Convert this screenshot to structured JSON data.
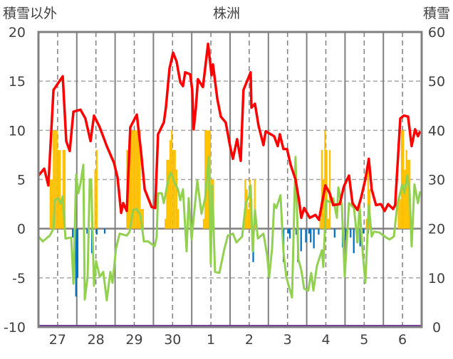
{
  "chart_data": {
    "type": "line",
    "title": "株洲",
    "ylabel_left": "積雪以外",
    "ylabel_right": "積雪",
    "x_unit": "hours since day 27 00:00",
    "xlim": [
      0,
      240
    ],
    "ylim_left": [
      -10,
      20
    ],
    "ylim_right": [
      0,
      60
    ],
    "yticks_left": [
      "20",
      "15",
      "10",
      "5",
      "0",
      "-5",
      "-10"
    ],
    "yticks_right": [
      "60",
      "50",
      "40",
      "30",
      "20",
      "10",
      "0"
    ],
    "xtick_labels": [
      "27",
      "28",
      "29",
      "30",
      "1",
      "2",
      "3",
      "4",
      "5",
      "6"
    ],
    "grid": true,
    "colors": {
      "red": "#ff0000",
      "green": "#92d050",
      "orange": "#ffc000",
      "blue": "#0070c0",
      "purple": "#7030a0"
    },
    "series": [
      {
        "name": "red-line",
        "axis": "left",
        "kind": "line",
        "points": [
          [
            0,
            5.4
          ],
          [
            3.6,
            6.1
          ],
          [
            6.2,
            4.4
          ],
          [
            9.4,
            14.1
          ],
          [
            15.2,
            15.5
          ],
          [
            17.4,
            8.9
          ],
          [
            19.6,
            7.9
          ],
          [
            21.9,
            11.9
          ],
          [
            26.3,
            12.1
          ],
          [
            29.4,
            11.2
          ],
          [
            32.6,
            8.9
          ],
          [
            34.8,
            11.5
          ],
          [
            38.4,
            10.3
          ],
          [
            42.8,
            8.4
          ],
          [
            47.3,
            6.7
          ],
          [
            49.5,
            5.2
          ],
          [
            51.8,
            1.6
          ],
          [
            53.1,
            2.6
          ],
          [
            55.3,
            1.8
          ],
          [
            57.5,
            10.3
          ],
          [
            61.6,
            11.6
          ],
          [
            64.2,
            7.9
          ],
          [
            66.5,
            4.0
          ],
          [
            70.9,
            2.2
          ],
          [
            73.1,
            2.1
          ],
          [
            74.9,
            9.6
          ],
          [
            78.5,
            10.8
          ],
          [
            79.8,
            12.3
          ],
          [
            82.1,
            16.3
          ],
          [
            84.3,
            17.9
          ],
          [
            86.5,
            17.0
          ],
          [
            88.8,
            14.9
          ],
          [
            90.5,
            14.5
          ],
          [
            91.9,
            15.9
          ],
          [
            95.0,
            15.7
          ],
          [
            96.3,
            14.1
          ],
          [
            97.2,
            10.1
          ],
          [
            98.6,
            12.3
          ],
          [
            99.9,
            15.2
          ],
          [
            103.0,
            14.4
          ],
          [
            106.2,
            18.8
          ],
          [
            108.4,
            15.6
          ],
          [
            109.3,
            16.7
          ],
          [
            112.0,
            13.2
          ],
          [
            114.2,
            11.4
          ],
          [
            117.3,
            10.8
          ],
          [
            120.0,
            8.4
          ],
          [
            121.8,
            7.1
          ],
          [
            124.4,
            9.1
          ],
          [
            126.7,
            6.9
          ],
          [
            128.4,
            14.1
          ],
          [
            132.9,
            15.9
          ],
          [
            133.4,
            12.3
          ],
          [
            135.6,
            12.7
          ],
          [
            137.8,
            10.5
          ],
          [
            140.9,
            8.5
          ],
          [
            142.3,
            9.9
          ],
          [
            147.6,
            9.4
          ],
          [
            149.9,
            8.4
          ],
          [
            151.2,
            9.6
          ],
          [
            153.4,
            8.1
          ],
          [
            155.7,
            8.1
          ],
          [
            157.9,
            6.5
          ],
          [
            161.0,
            5.0
          ],
          [
            163.2,
            2.9
          ],
          [
            164.6,
            1.1
          ],
          [
            166.4,
            2.1
          ],
          [
            169.9,
            1.1
          ],
          [
            173.5,
            1.4
          ],
          [
            175.7,
            0.9
          ],
          [
            177.5,
            2.5
          ],
          [
            179.7,
            4.4
          ],
          [
            182.4,
            3.6
          ],
          [
            184.6,
            2.4
          ],
          [
            188.7,
            2.5
          ],
          [
            191.3,
            4.3
          ],
          [
            194.5,
            5.4
          ],
          [
            196.7,
            2.6
          ],
          [
            199.8,
            1.9
          ],
          [
            202.0,
            3.1
          ],
          [
            204.7,
            5.0
          ],
          [
            206.9,
            7.1
          ],
          [
            208.7,
            4.0
          ],
          [
            211.4,
            2.4
          ],
          [
            214.5,
            2.5
          ],
          [
            216.8,
            1.8
          ],
          [
            219.0,
            2.5
          ],
          [
            222.1,
            2.0
          ],
          [
            223.4,
            2.4
          ],
          [
            226.6,
            11.2
          ],
          [
            228.8,
            11.5
          ],
          [
            231.5,
            11.4
          ],
          [
            233.7,
            8.4
          ],
          [
            235.9,
            10.1
          ],
          [
            237.7,
            9.4
          ],
          [
            239,
            9.9
          ]
        ]
      },
      {
        "name": "green-line",
        "axis": "left",
        "kind": "line",
        "points": [
          [
            0,
            -0.8
          ],
          [
            2.7,
            -1.3
          ],
          [
            7.1,
            -0.7
          ],
          [
            9.4,
            0
          ],
          [
            10.3,
            2.9
          ],
          [
            12.5,
            3.1
          ],
          [
            13.8,
            2.5
          ],
          [
            15.2,
            3.3
          ],
          [
            16.9,
            -1.0
          ],
          [
            20.5,
            -0.9
          ],
          [
            21.9,
            -5.6
          ],
          [
            23.6,
            5.5
          ],
          [
            25.0,
            3.6
          ],
          [
            26.3,
            4.6
          ],
          [
            28.1,
            6.5
          ],
          [
            29.0,
            -7.2
          ],
          [
            30.8,
            -4.9
          ],
          [
            32.1,
            5.0
          ],
          [
            33.0,
            5.0
          ],
          [
            34.8,
            -5.8
          ],
          [
            36.1,
            -3.3
          ],
          [
            38.4,
            -4.9
          ],
          [
            40.6,
            -4.4
          ],
          [
            42.8,
            -7.3
          ],
          [
            45.0,
            -4.4
          ],
          [
            46.4,
            -5.5
          ],
          [
            48.6,
            -2.0
          ],
          [
            50.8,
            -0.5
          ],
          [
            55.3,
            -0.7
          ],
          [
            57.1,
            -0.3
          ],
          [
            59.3,
            1.9
          ],
          [
            61.6,
            2.0
          ],
          [
            63.8,
            1.4
          ],
          [
            66.0,
            -1.3
          ],
          [
            68.7,
            -1.3
          ],
          [
            72.7,
            -1.8
          ],
          [
            74.0,
            -0.9
          ],
          [
            74.9,
            3.6
          ],
          [
            77.2,
            3.6
          ],
          [
            78.5,
            2.6
          ],
          [
            81.6,
            5.2
          ],
          [
            83.0,
            5.7
          ],
          [
            85.2,
            4.7
          ],
          [
            87.4,
            4.0
          ],
          [
            88.8,
            2.9
          ],
          [
            90.5,
            4.0
          ],
          [
            92.8,
            -2.3
          ],
          [
            94.1,
            3.1
          ],
          [
            95.9,
            -1.1
          ],
          [
            99.5,
            4.9
          ],
          [
            102.1,
            1.5
          ],
          [
            104.4,
            3.1
          ],
          [
            106.6,
            7.3
          ],
          [
            107.9,
            -3.6
          ],
          [
            108.8,
            4.4
          ],
          [
            110.6,
            -4.4
          ],
          [
            113.3,
            -4.5
          ],
          [
            116.4,
            -2.1
          ],
          [
            118.6,
            -0.7
          ],
          [
            121.8,
            -0.5
          ],
          [
            124.0,
            -1.4
          ],
          [
            127.6,
            -0.8
          ],
          [
            129.8,
            2.6
          ],
          [
            132.0,
            3.3
          ],
          [
            132.9,
            4.4
          ],
          [
            134.2,
            -2.3
          ],
          [
            135.6,
            1.9
          ],
          [
            137.4,
            -1.0
          ],
          [
            140.9,
            -0.5
          ],
          [
            143.2,
            -2.7
          ],
          [
            144.5,
            -4.9
          ],
          [
            146.3,
            -2.0
          ],
          [
            147.6,
            2.5
          ],
          [
            149.0,
            2.1
          ],
          [
            151.6,
            3.4
          ],
          [
            153.4,
            -2.3
          ],
          [
            155.2,
            -4.9
          ],
          [
            158.8,
            -7.0
          ],
          [
            161.0,
            7.3
          ],
          [
            162.8,
            -3.1
          ],
          [
            164.6,
            -4.2
          ],
          [
            166.4,
            -6.1
          ],
          [
            169.0,
            -6.3
          ],
          [
            170.8,
            -4.5
          ],
          [
            172.2,
            -6.3
          ],
          [
            174.4,
            -3.8
          ],
          [
            177.5,
            -2.2
          ],
          [
            178.4,
            -3.9
          ],
          [
            180.2,
            2.9
          ],
          [
            182.4,
            2.7
          ],
          [
            184.6,
            3.1
          ],
          [
            186.9,
            1.1
          ],
          [
            187.8,
            4.2
          ],
          [
            190.0,
            2.4
          ],
          [
            191.8,
            -4.9
          ],
          [
            194.5,
            2.6
          ],
          [
            197.6,
            2.1
          ],
          [
            199.8,
            -1.4
          ],
          [
            201.1,
            2.4
          ],
          [
            202.5,
            -1.3
          ],
          [
            204.7,
            -5.5
          ],
          [
            206.9,
            2.4
          ],
          [
            208.7,
            -0.8
          ],
          [
            210.1,
            -0.3
          ],
          [
            213.6,
            -0.4
          ],
          [
            216.8,
            -0.8
          ],
          [
            219.9,
            -1.1
          ],
          [
            222.6,
            -0.8
          ],
          [
            224.8,
            2.5
          ],
          [
            227.9,
            4.5
          ],
          [
            229.2,
            3.6
          ],
          [
            231.0,
            5.4
          ],
          [
            232.4,
            3.8
          ],
          [
            233.7,
            -1.8
          ],
          [
            235.5,
            4.5
          ],
          [
            237.7,
            2.6
          ],
          [
            239,
            3.8
          ]
        ]
      },
      {
        "name": "orange-bars",
        "axis": "left",
        "kind": "bar",
        "points": [
          [
            7,
            5
          ],
          [
            8,
            5
          ],
          [
            9,
            10
          ],
          [
            10,
            10
          ],
          [
            11,
            10
          ],
          [
            12,
            8
          ],
          [
            13,
            8
          ],
          [
            14,
            3
          ],
          [
            15,
            8
          ],
          [
            16,
            8
          ],
          [
            33,
            4
          ],
          [
            35,
            6
          ],
          [
            36,
            8
          ],
          [
            55,
            8
          ],
          [
            56,
            8
          ],
          [
            57,
            10
          ],
          [
            58,
            10
          ],
          [
            59,
            10
          ],
          [
            60,
            10
          ],
          [
            61,
            10
          ],
          [
            62,
            10
          ],
          [
            63,
            10
          ],
          [
            64,
            2
          ],
          [
            65,
            2
          ],
          [
            79,
            1
          ],
          [
            80,
            7
          ],
          [
            81,
            7
          ],
          [
            82,
            9
          ],
          [
            83,
            10
          ],
          [
            84,
            8
          ],
          [
            85,
            8
          ],
          [
            86,
            6
          ],
          [
            87,
            2
          ],
          [
            103,
            1
          ],
          [
            104,
            10
          ],
          [
            105,
            10
          ],
          [
            106,
            10
          ],
          [
            107,
            10
          ],
          [
            108,
            5
          ],
          [
            109,
            5
          ],
          [
            128,
            1
          ],
          [
            129,
            5
          ],
          [
            130,
            4
          ],
          [
            131,
            2
          ],
          [
            132,
            5
          ],
          [
            133,
            3
          ],
          [
            135,
            5
          ],
          [
            176,
            1
          ],
          [
            177,
            8
          ],
          [
            178,
            5
          ],
          [
            179,
            10
          ],
          [
            180,
            8
          ],
          [
            181,
            1
          ],
          [
            182,
            8
          ],
          [
            205,
            1
          ],
          [
            206,
            6
          ],
          [
            207,
            4
          ],
          [
            225,
            3
          ],
          [
            226,
            3
          ],
          [
            227,
            10
          ],
          [
            228,
            10
          ],
          [
            229,
            6
          ],
          [
            230,
            8
          ],
          [
            231,
            7
          ],
          [
            232,
            7
          ]
        ]
      },
      {
        "name": "blue-bars",
        "axis": "left",
        "kind": "bar",
        "points": [
          [
            21,
            -0.9
          ],
          [
            23,
            -6.9
          ],
          [
            24,
            -5.0
          ],
          [
            28,
            -0.5
          ],
          [
            30,
            -0.5
          ],
          [
            33,
            -2.5
          ],
          [
            36,
            -0.6
          ],
          [
            41,
            -0.5
          ],
          [
            134,
            -3.4
          ],
          [
            153,
            -3.4
          ],
          [
            156,
            -0.5
          ],
          [
            157,
            -1.0
          ],
          [
            161,
            -0.6
          ],
          [
            162,
            -3.4
          ],
          [
            164,
            -2.3
          ],
          [
            167,
            -1.4
          ],
          [
            169,
            -0.5
          ],
          [
            170,
            -1.4
          ],
          [
            172,
            -2.0
          ],
          [
            175,
            -0.6
          ],
          [
            185,
            -0.9
          ],
          [
            190,
            -1.9
          ],
          [
            192,
            -1.2
          ],
          [
            195,
            -0.9
          ],
          [
            197,
            -2.5
          ],
          [
            199,
            -1.4
          ],
          [
            201,
            -1.8
          ],
          [
            203,
            -0.5
          ],
          [
            206,
            -0.5
          ]
        ]
      },
      {
        "name": "snow-depth",
        "axis": "right",
        "kind": "line",
        "points": [
          [
            0,
            0
          ],
          [
            240,
            0
          ]
        ]
      }
    ]
  }
}
